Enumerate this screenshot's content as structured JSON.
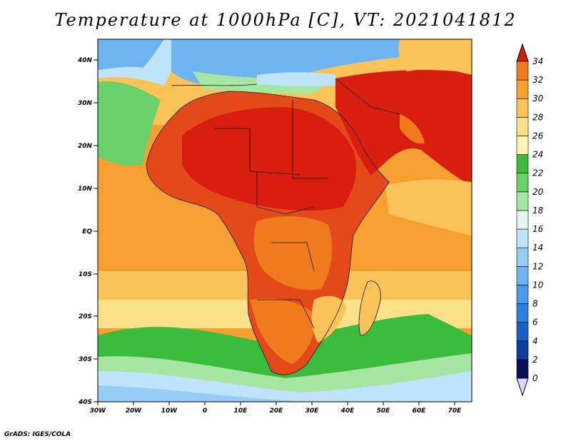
{
  "title": "Temperature at 1000hPa [C], VT: 2021041812",
  "credit": "GrADS: IGES/COLA",
  "map": {
    "lat_ticks": [
      "40N",
      "30N",
      "20N",
      "10N",
      "EQ",
      "10S",
      "20S",
      "30S",
      "40S"
    ],
    "lon_ticks": [
      "30W",
      "20W",
      "10W",
      "0",
      "10E",
      "20E",
      "30E",
      "40E",
      "50E",
      "60E",
      "70E"
    ],
    "lat_range": [
      -40,
      45
    ],
    "lon_range": [
      -30,
      75
    ]
  },
  "colorbar": {
    "levels": [
      "0",
      "2",
      "4",
      "6",
      "8",
      "10",
      "12",
      "14",
      "16",
      "18",
      "20",
      "22",
      "24",
      "26",
      "28",
      "30",
      "32",
      "34"
    ],
    "colors": [
      "#07105a",
      "#0f3f9e",
      "#1a60c4",
      "#2f7fdc",
      "#4a9ae8",
      "#6db4f1",
      "#96cdf7",
      "#bfe3fb",
      "#e2f6ef",
      "#a7e6a2",
      "#6ad06a",
      "#3cbc3c",
      "#fbf5b0",
      "#fbe08a",
      "#f9c35a",
      "#f6a034",
      "#f07a1e",
      "#e4491a",
      "#d01e0e"
    ]
  },
  "palette": {
    "ocean_warm": "#f6a034",
    "ocean_mild": "#f9c35a",
    "ocean_cool": "#fbe08a",
    "ocean_cold_green": "#6ad06a",
    "ocean_colder": "#96cdf7",
    "land_hot": "#d81e0e",
    "land_very_hot": "#e4491a",
    "land_med": "#f07a1e",
    "sea_blue": "#6db4f1"
  }
}
